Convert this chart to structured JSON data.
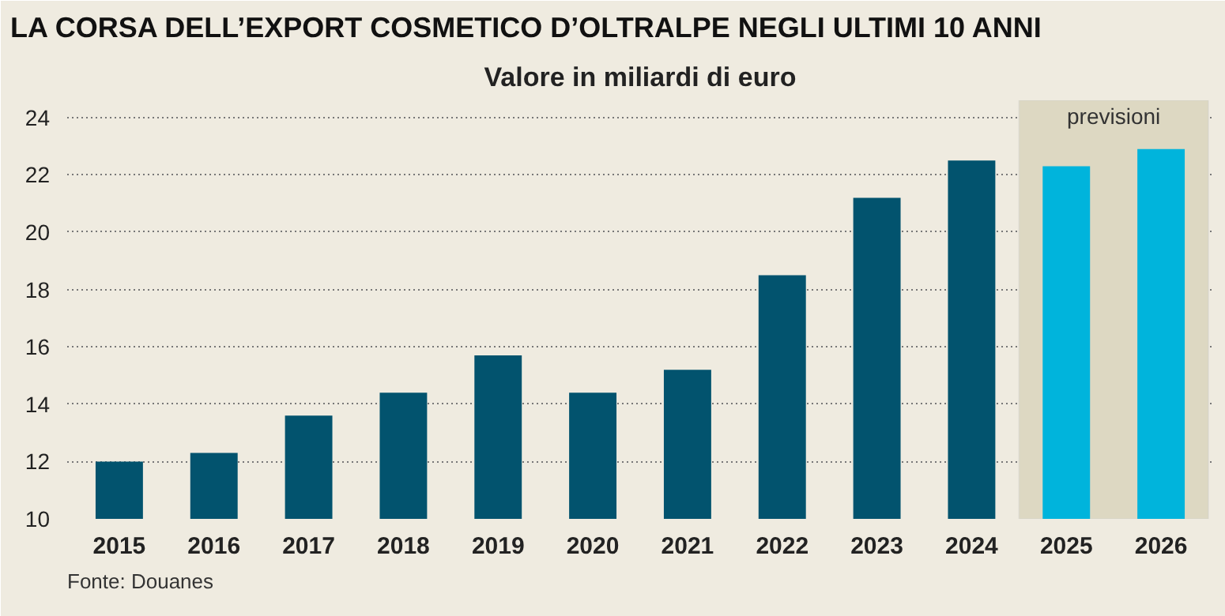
{
  "chart_data": {
    "type": "bar",
    "title": "LA CORSA DELL’EXPORT COSMETICO D’OLTRALPE NEGLI ULTIMI 10 ANNI",
    "subtitle": "Valore in miliardi di euro",
    "categories": [
      "2015",
      "2016",
      "2017",
      "2018",
      "2019",
      "2020",
      "2021",
      "2022",
      "2023",
      "2024",
      "2025",
      "2026"
    ],
    "values": [
      12.0,
      12.3,
      13.6,
      14.4,
      15.7,
      14.4,
      15.2,
      18.5,
      21.2,
      22.5,
      22.3,
      22.9
    ],
    "colors": [
      "#02536e",
      "#02536e",
      "#02536e",
      "#02536e",
      "#02536e",
      "#02536e",
      "#02536e",
      "#02536e",
      "#02536e",
      "#02536e",
      "#00b4dc",
      "#00b4dc"
    ],
    "ylim": [
      10,
      24.6
    ],
    "yticks": [
      10,
      12,
      14,
      16,
      18,
      20,
      22,
      24
    ],
    "grid": "y",
    "bands": [
      {
        "axis": "x",
        "from": "2025",
        "to": "2026",
        "label": "previsioni",
        "color": "#ddd8c2"
      }
    ],
    "annotations": [
      "Fonte: Douanes"
    ]
  }
}
